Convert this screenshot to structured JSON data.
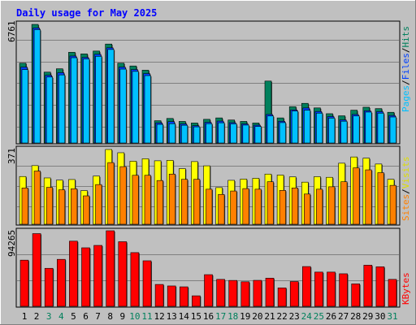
{
  "title": "Daily usage for May 2025",
  "colors": {
    "background": "#c0c0c0",
    "title": "#0000ff",
    "hits": "#00805c",
    "files": "#0040ff",
    "pages": "#00c0ff",
    "visits": "#ffff00",
    "sites": "#ff8000",
    "kbytes": "#ff0000",
    "weekend_label": "#00805c",
    "weekday_label": "#000000"
  },
  "legend": {
    "pages": "Pages",
    "files": "Files",
    "hits": "Hits",
    "sites": "Sites",
    "visits": "Visits",
    "kbytes": "KBytes",
    "separator": "/"
  },
  "chart_data": [
    {
      "type": "bar",
      "panel": "hits-files-pages",
      "y_max_label": "6761",
      "y_max": 6761,
      "grid": true,
      "categories": [
        "1",
        "2",
        "3",
        "4",
        "5",
        "6",
        "7",
        "8",
        "9",
        "10",
        "11",
        "12",
        "13",
        "14",
        "15",
        "16",
        "17",
        "18",
        "19",
        "20",
        "21",
        "22",
        "23",
        "24",
        "25",
        "26",
        "27",
        "28",
        "29",
        "30",
        "31"
      ],
      "weekend_days": [
        3,
        4,
        10,
        11,
        17,
        18,
        24,
        25,
        31
      ],
      "series": [
        {
          "name": "Hits",
          "values": [
            4550,
            6761,
            4040,
            4230,
            5170,
            5080,
            5240,
            5640,
            4550,
            4390,
            4150,
            1270,
            1400,
            1230,
            1140,
            1350,
            1430,
            1310,
            1230,
            1140,
            3530,
            1430,
            2070,
            2260,
            2000,
            1670,
            1550,
            1870,
            2040,
            1960,
            1750
          ]
        },
        {
          "name": "Files",
          "values": [
            4420,
            6650,
            3950,
            4100,
            5050,
            4970,
            5150,
            5520,
            4420,
            4280,
            4050,
            1240,
            1310,
            1180,
            1080,
            1270,
            1340,
            1250,
            1180,
            1110,
            1720,
            1330,
            1980,
            2090,
            1890,
            1600,
            1410,
            1720,
            1930,
            1880,
            1660
          ]
        },
        {
          "name": "Pages",
          "values": [
            4320,
            6600,
            3900,
            4020,
            5000,
            4930,
            5080,
            5470,
            4350,
            4220,
            3980,
            1200,
            1240,
            1150,
            1060,
            1240,
            1290,
            1230,
            1160,
            1080,
            1680,
            1300,
            1960,
            2010,
            1840,
            1560,
            1380,
            1680,
            1900,
            1840,
            1620
          ]
        }
      ]
    },
    {
      "type": "bar",
      "panel": "visits-sites",
      "y_max_label": "371",
      "y_max": 371,
      "grid": true,
      "categories": [
        "1",
        "2",
        "3",
        "4",
        "5",
        "6",
        "7",
        "8",
        "9",
        "10",
        "11",
        "12",
        "13",
        "14",
        "15",
        "16",
        "17",
        "18",
        "19",
        "20",
        "21",
        "22",
        "23",
        "24",
        "25",
        "26",
        "27",
        "28",
        "29",
        "30",
        "31"
      ],
      "series": [
        {
          "name": "Visits",
          "values": [
            237,
            291,
            230,
            219,
            222,
            167,
            239,
            371,
            355,
            313,
            325,
            315,
            317,
            276,
            311,
            290,
            182,
            218,
            224,
            228,
            249,
            244,
            235,
            209,
            236,
            233,
            303,
            334,
            328,
            299,
            223
          ]
        },
        {
          "name": "Sites",
          "values": [
            180,
            264,
            183,
            171,
            176,
            141,
            197,
            306,
            286,
            243,
            243,
            217,
            249,
            223,
            223,
            174,
            148,
            165,
            177,
            174,
            211,
            168,
            180,
            150,
            174,
            186,
            211,
            280,
            270,
            256,
            193
          ]
        }
      ]
    },
    {
      "type": "bar",
      "panel": "kbytes",
      "y_max_label": "94265",
      "y_max": 94265,
      "grid": true,
      "categories": [
        "1",
        "2",
        "3",
        "4",
        "5",
        "6",
        "7",
        "8",
        "9",
        "10",
        "11",
        "12",
        "13",
        "14",
        "15",
        "16",
        "17",
        "18",
        "19",
        "20",
        "21",
        "22",
        "23",
        "24",
        "25",
        "26",
        "27",
        "28",
        "29",
        "30",
        "31"
      ],
      "series": [
        {
          "name": "KBytes",
          "values": [
            57600,
            90700,
            47400,
            58600,
            81300,
            73000,
            76000,
            94265,
            80600,
            67000,
            56800,
            27300,
            25400,
            24300,
            13100,
            39500,
            33600,
            32300,
            30600,
            32400,
            35100,
            23000,
            30900,
            49600,
            42700,
            42700,
            40600,
            28000,
            51300,
            49300,
            33600
          ]
        }
      ]
    }
  ]
}
